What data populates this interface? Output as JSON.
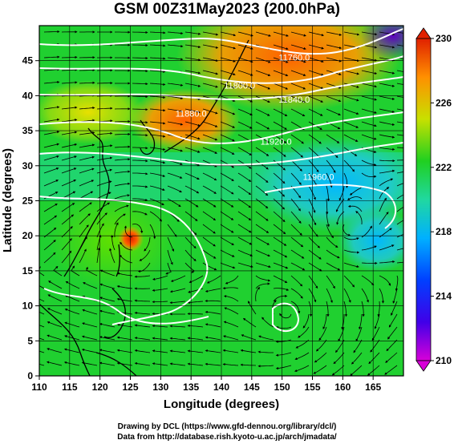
{
  "title": "GSM 00Z31May2023 (200.0hPa)",
  "chart_data": {
    "type": "heatmap",
    "title": "GSM 00Z31May2023 (200.0hPa)",
    "xlabel": "Longitude (degrees)",
    "ylabel": "Latitude (degrees)",
    "xlim": [
      110,
      170
    ],
    "ylim": [
      0,
      50
    ],
    "x_ticks": [
      110,
      115,
      120,
      125,
      130,
      135,
      140,
      145,
      150,
      155,
      160,
      165
    ],
    "y_ticks": [
      0,
      5,
      10,
      15,
      20,
      25,
      30,
      35,
      40,
      45
    ],
    "grid": true,
    "colorbar": {
      "min": 210,
      "max": 230,
      "ticks": [
        210,
        214,
        218,
        222,
        226,
        230
      ],
      "placement": "right",
      "colors": [
        "#d800d8",
        "#1000e0",
        "#00a0ff",
        "#20d890",
        "#20d020",
        "#c8e000",
        "#ff9000",
        "#e02000"
      ]
    },
    "contour_labels": [
      {
        "text": "11760.0",
        "lon": 152,
        "lat": 45
      },
      {
        "text": "11800.0",
        "lon": 143,
        "lat": 41
      },
      {
        "text": "11840.0",
        "lon": 152,
        "lat": 39
      },
      {
        "text": "11880.0",
        "lon": 135,
        "lat": 37
      },
      {
        "text": "11920.0",
        "lon": 149,
        "lat": 33
      },
      {
        "text": "11960.0",
        "lon": 156,
        "lat": 28
      }
    ],
    "features": [
      {
        "name": "tropical cyclone",
        "lon": 125.5,
        "lat": 21
      },
      {
        "name": "anticyclonic circulation",
        "lon": 161,
        "lat": 21
      },
      {
        "name": "circulation",
        "lon": 151,
        "lat": 9
      }
    ]
  },
  "xlabel": "Longitude (degrees)",
  "ylabel": "Latitude (degrees)",
  "credits": {
    "line1": "Drawing by DCL (https://www.gfd-dennou.org/library/dcl/)",
    "line2": "Data from http://database.rish.kyoto-u.ac.jp/arch/jmadata/"
  }
}
